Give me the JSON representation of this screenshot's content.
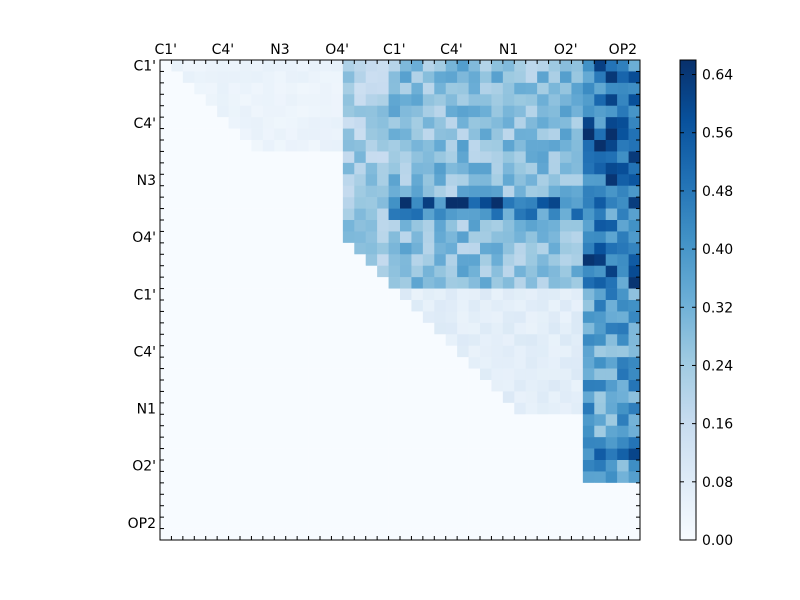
{
  "chart_data": {
    "type": "heatmap",
    "title": "",
    "xlabel": "",
    "ylabel": "",
    "x_tick_labels": [
      "C1'",
      "C4'",
      "N3",
      "O4'",
      "C1'",
      "C4'",
      "N1",
      "O2'",
      "OP2"
    ],
    "y_tick_labels": [
      "C1'",
      "C4'",
      "N3",
      "O4'",
      "C1'",
      "C4'",
      "N1",
      "O2'",
      "OP2"
    ],
    "n_cells": 42,
    "colormap": "Blues",
    "colorbar": {
      "min": 0.0,
      "max": 0.66,
      "tick_labels": [
        "0.00",
        "0.08",
        "0.16",
        "0.24",
        "0.32",
        "0.40",
        "0.48",
        "0.56",
        "0.64"
      ],
      "tick_values": [
        0.0,
        0.08,
        0.16,
        0.24,
        0.32,
        0.4,
        0.48,
        0.56,
        0.64
      ]
    },
    "matrix_note": "upper-triangular; lower triangle is 0",
    "blocks": [
      {
        "rows": [
          0,
          7
        ],
        "cols": [
          1,
          15
        ],
        "value": 0.04
      },
      {
        "rows": [
          0,
          7
        ],
        "cols": [
          16,
          19
        ],
        "value": 0.22
      },
      {
        "rows": [
          0,
          19
        ],
        "cols": [
          20,
          36
        ],
        "value": 0.28
      },
      {
        "rows": [
          0,
          19
        ],
        "cols": [
          37,
          41
        ],
        "value": 0.5
      },
      {
        "rows": [
          8,
          19
        ],
        "cols": [
          16,
          19
        ],
        "value": 0.24
      },
      {
        "rows": [
          20,
          30
        ],
        "cols": [
          21,
          36
        ],
        "value": 0.07
      },
      {
        "rows": [
          20,
          36
        ],
        "cols": [
          37,
          41
        ],
        "value": 0.36
      }
    ],
    "highlights": [
      {
        "row": 12,
        "cols": [
          20,
          41
        ],
        "value": 0.5
      },
      {
        "row": 13,
        "cols": [
          20,
          41
        ],
        "value": 0.4
      },
      {
        "row": 3,
        "cols": [
          37,
          41
        ],
        "value": 0.58
      },
      {
        "row": 6,
        "cols": [
          37,
          41
        ],
        "value": 0.58
      },
      {
        "row": 16,
        "cols": [
          37,
          41
        ],
        "value": 0.6
      },
      {
        "row": 26,
        "cols": [
          38,
          41
        ],
        "value": 0.52
      },
      {
        "row": 33,
        "cols": [
          38,
          41
        ],
        "value": 0.56
      },
      {
        "row": 34,
        "cols": [
          38,
          41
        ],
        "value": 0.6
      }
    ]
  }
}
